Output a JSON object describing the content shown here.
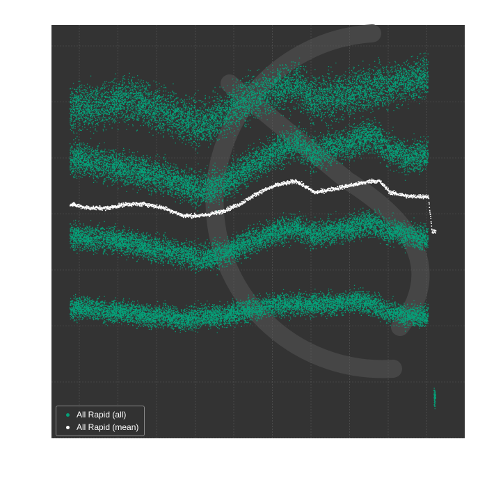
{
  "chart_data": {
    "type": "scatter",
    "title": "",
    "xlabel": "",
    "ylabel": "",
    "xlim": [
      0,
      100
    ],
    "ylim": [
      0,
      100
    ],
    "grid": true,
    "background_color": "#333333",
    "legend_placement": "bottom-left",
    "series": [
      {
        "name": "All Rapid (all)",
        "color": "#05a078",
        "bands": [
          {
            "x": [
              0,
              5,
              10,
              15,
              20,
              25,
              30,
              35,
              40,
              45,
              50,
              55,
              60,
              65,
              70,
              75,
              80,
              85,
              90,
              95
            ],
            "y": [
              83,
              83,
              84,
              85,
              84,
              82,
              80,
              79,
              81,
              84,
              86,
              88,
              89,
              85,
              86,
              87,
              88,
              89,
              90,
              91
            ],
            "spread": 6
          },
          {
            "x": [
              0,
              5,
              10,
              15,
              20,
              25,
              30,
              35,
              40,
              45,
              50,
              55,
              60,
              65,
              70,
              75,
              80,
              85,
              90,
              95
            ],
            "y": [
              70,
              69,
              68,
              67,
              66,
              65,
              63,
              62,
              63,
              66,
              69,
              72,
              74,
              71,
              73,
              74,
              76,
              72,
              70,
              71
            ],
            "spread": 4.5
          },
          {
            "x": [
              0,
              5,
              10,
              15,
              20,
              25,
              30,
              35,
              40,
              45,
              50,
              55,
              60,
              65,
              70,
              75,
              80,
              85,
              90,
              95
            ],
            "y": [
              50,
              49,
              49,
              48,
              47,
              46,
              45,
              44,
              45,
              47,
              49,
              51,
              52,
              50,
              51,
              52,
              53,
              51,
              50,
              49
            ],
            "spread": 3.5
          },
          {
            "x": [
              0,
              5,
              10,
              15,
              20,
              25,
              30,
              35,
              40,
              45,
              50,
              55,
              60,
              65,
              70,
              75,
              80,
              85,
              90,
              95
            ],
            "y": [
              31,
              31,
              30,
              30,
              29,
              29,
              28,
              29,
              29,
              30,
              31,
              32,
              32,
              32,
              32,
              33,
              32,
              30,
              29,
              29
            ],
            "spread": 3
          },
          {
            "x": [
              96.5,
              97
            ],
            "y": [
              8,
              8
            ],
            "spread": 2.5
          }
        ]
      },
      {
        "name": "All Rapid (mean)",
        "color": "#ffffff",
        "x": [
          0,
          5,
          10,
          15,
          20,
          25,
          30,
          35,
          40,
          45,
          50,
          55,
          60,
          65,
          70,
          75,
          80,
          82,
          85,
          90,
          95,
          96,
          97
        ],
        "y": [
          58,
          57,
          57,
          58,
          58,
          57,
          55,
          55,
          56,
          58,
          61,
          63,
          64,
          61,
          62,
          63,
          64,
          64,
          61,
          60,
          60,
          51,
          51
        ]
      }
    ]
  }
}
